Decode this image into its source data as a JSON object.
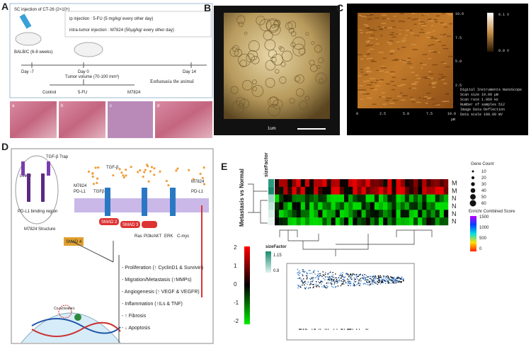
{
  "panels": {
    "a": {
      "letter": "A",
      "injection": "SC injection of CT-26 (2×10⁵)",
      "mouse": "BALB/C (6-8 weeks)",
      "treatments": [
        "ip injection : 5-FU (5 mg/kg/ every other day)",
        "intra-tumor injection : M7824 (50µg/kg/ every other day)"
      ],
      "timeline": [
        "Day -7",
        "Day 0",
        "Day 14"
      ],
      "tumor_volume": "Tumor volume (70-100 mm³)",
      "end": "Euthanasia the animal",
      "groups": [
        "Control",
        "5-FU",
        "M7824"
      ],
      "histology": [
        "a",
        "b",
        "c",
        "d"
      ]
    },
    "b": {
      "letter": "B",
      "scale_bar": "1um"
    },
    "c": {
      "letter": "C",
      "colorbar": [
        "0.1 V",
        "0.0 V"
      ],
      "axis_ticks": [
        "0",
        "2.5",
        "5.0",
        "7.5",
        "10.0"
      ],
      "axis_unit": "µm",
      "info": [
        "Digital Instruments NanoScope",
        "Scan size    10.00 µm",
        "Scan rate    1.969 Hz",
        "Number of samples   512",
        "Image Data   Deflection",
        "Data scale   100.00 mV"
      ]
    },
    "d": {
      "letter": "D",
      "structure": [
        "TGF-β Trap",
        "Linker",
        "PD-L1 binding region",
        "M7824 Structure"
      ],
      "ligands": [
        "TGF-β",
        "M7824",
        "PD-L1",
        "TGFβ-R",
        "M7824",
        "PD-L1"
      ],
      "smads": [
        "SMAD 2",
        "SMAD 3",
        "SMAD 4"
      ],
      "pathways": [
        "Ras",
        "PI3k/AKT",
        "ERK",
        "C-myc"
      ],
      "coactivators": "Co-activators",
      "outcomes": [
        "- Proliferation (↑ CyclinD1 & Survivin)",
        "- Migration/Metastasis (↑MMPs)",
        "- Angiogenesis (↑ VEGF & VEGFR)",
        "- Inflammation (↑ILs & TNF)",
        "- ↑ Fibrosis",
        "- ↓ Apoptosis"
      ]
    },
    "e": {
      "letter": "E",
      "size_factor": "sizeFactor",
      "comparison": "Metastasis vs Normal",
      "rows": [
        "M",
        "M",
        "N",
        "N",
        "N",
        "N"
      ],
      "color_key": [
        "2",
        "1",
        "0",
        "-1",
        "-2"
      ],
      "size_factor_key": [
        "1.15",
        "0.8"
      ],
      "gene_count_title": "Gene Count",
      "gene_counts": [
        "10",
        "20",
        "30",
        "40",
        "50",
        "60"
      ],
      "score_title": "Enrichr Combined Score",
      "scores": [
        "1500",
        "1000",
        "500",
        "0"
      ]
    }
  }
}
